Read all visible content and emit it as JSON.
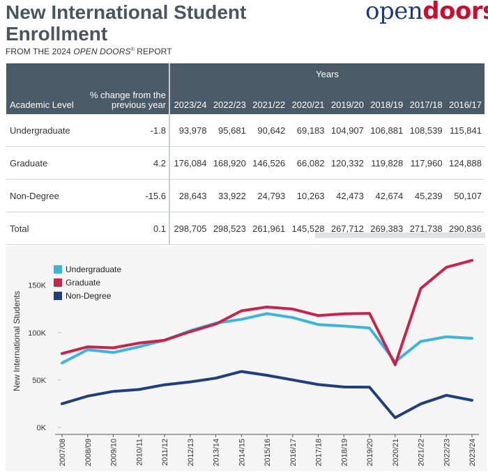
{
  "header": {
    "title": "New International Student Enrollment",
    "subtitle_pre": "FROM THE 2024 ",
    "subtitle_em": "OPEN DOORS",
    "subtitle_reg": "®",
    "subtitle_post": " REPORT",
    "logo_open": "open",
    "logo_doors": "doors"
  },
  "table": {
    "years_label": "Years",
    "col_level": "Academic Level",
    "col_pct_line1": "% change from the",
    "col_pct_line2": "previous year",
    "years": [
      "2023/24",
      "2022/23",
      "2021/22",
      "2020/21",
      "2019/20",
      "2018/19",
      "2017/18",
      "2016/17"
    ],
    "rows": [
      {
        "level": "Undergraduate",
        "pct": "-1.8",
        "vals": [
          "93,978",
          "95,681",
          "90,642",
          "69,183",
          "104,907",
          "106,881",
          "108,539",
          "115,841"
        ]
      },
      {
        "level": "Graduate",
        "pct": "4.2",
        "vals": [
          "176,084",
          "168,920",
          "146,526",
          "66,082",
          "120,332",
          "119,828",
          "117,960",
          "124,888"
        ]
      },
      {
        "level": "Non-Degree",
        "pct": "-15.6",
        "vals": [
          "28,643",
          "33,922",
          "24,793",
          "10,263",
          "42,473",
          "42,674",
          "45,239",
          "50,107"
        ]
      },
      {
        "level": "Total",
        "pct": "0.1",
        "vals": [
          "298,705",
          "298,523",
          "261,961",
          "145,528",
          "267,712",
          "269,383",
          "271,738",
          "290,836"
        ]
      }
    ]
  },
  "chart_data": {
    "type": "line",
    "title": "",
    "xlabel": "",
    "ylabel": "New International Students",
    "ylim": [
      0,
      185000
    ],
    "yticks": [
      0,
      50000,
      100000,
      150000
    ],
    "ytick_labels": [
      "0K",
      "50K",
      "100K",
      "150K"
    ],
    "categories": [
      "2007/08",
      "2008/09",
      "2009/10",
      "2010/11",
      "2011/12",
      "2012/13",
      "2013/14",
      "2014/15",
      "2015/16",
      "2016/17",
      "2017/18",
      "2018/19",
      "2019/20",
      "2020/21",
      "2021/22",
      "2022/23",
      "2023/24"
    ],
    "series": [
      {
        "name": "Undergraduate",
        "color": "#3cb4dc",
        "values": [
          68000,
          82000,
          79000,
          85000,
          92000,
          102000,
          110000,
          114000,
          120000,
          115841,
          108539,
          106881,
          104907,
          69183,
          90642,
          95681,
          93978
        ]
      },
      {
        "name": "Graduate",
        "color": "#c8234a",
        "values": [
          78000,
          85000,
          84000,
          89000,
          92000,
          101000,
          109000,
          123000,
          127000,
          124888,
          117960,
          119828,
          120332,
          66082,
          146526,
          168920,
          176084
        ]
      },
      {
        "name": "Non-Degree",
        "color": "#1e3f7c",
        "values": [
          25000,
          33000,
          38000,
          40000,
          45000,
          48000,
          52000,
          59000,
          55000,
          50107,
          45239,
          42674,
          42473,
          10263,
          24793,
          33922,
          28643
        ]
      }
    ],
    "legend_position": "top-left"
  }
}
